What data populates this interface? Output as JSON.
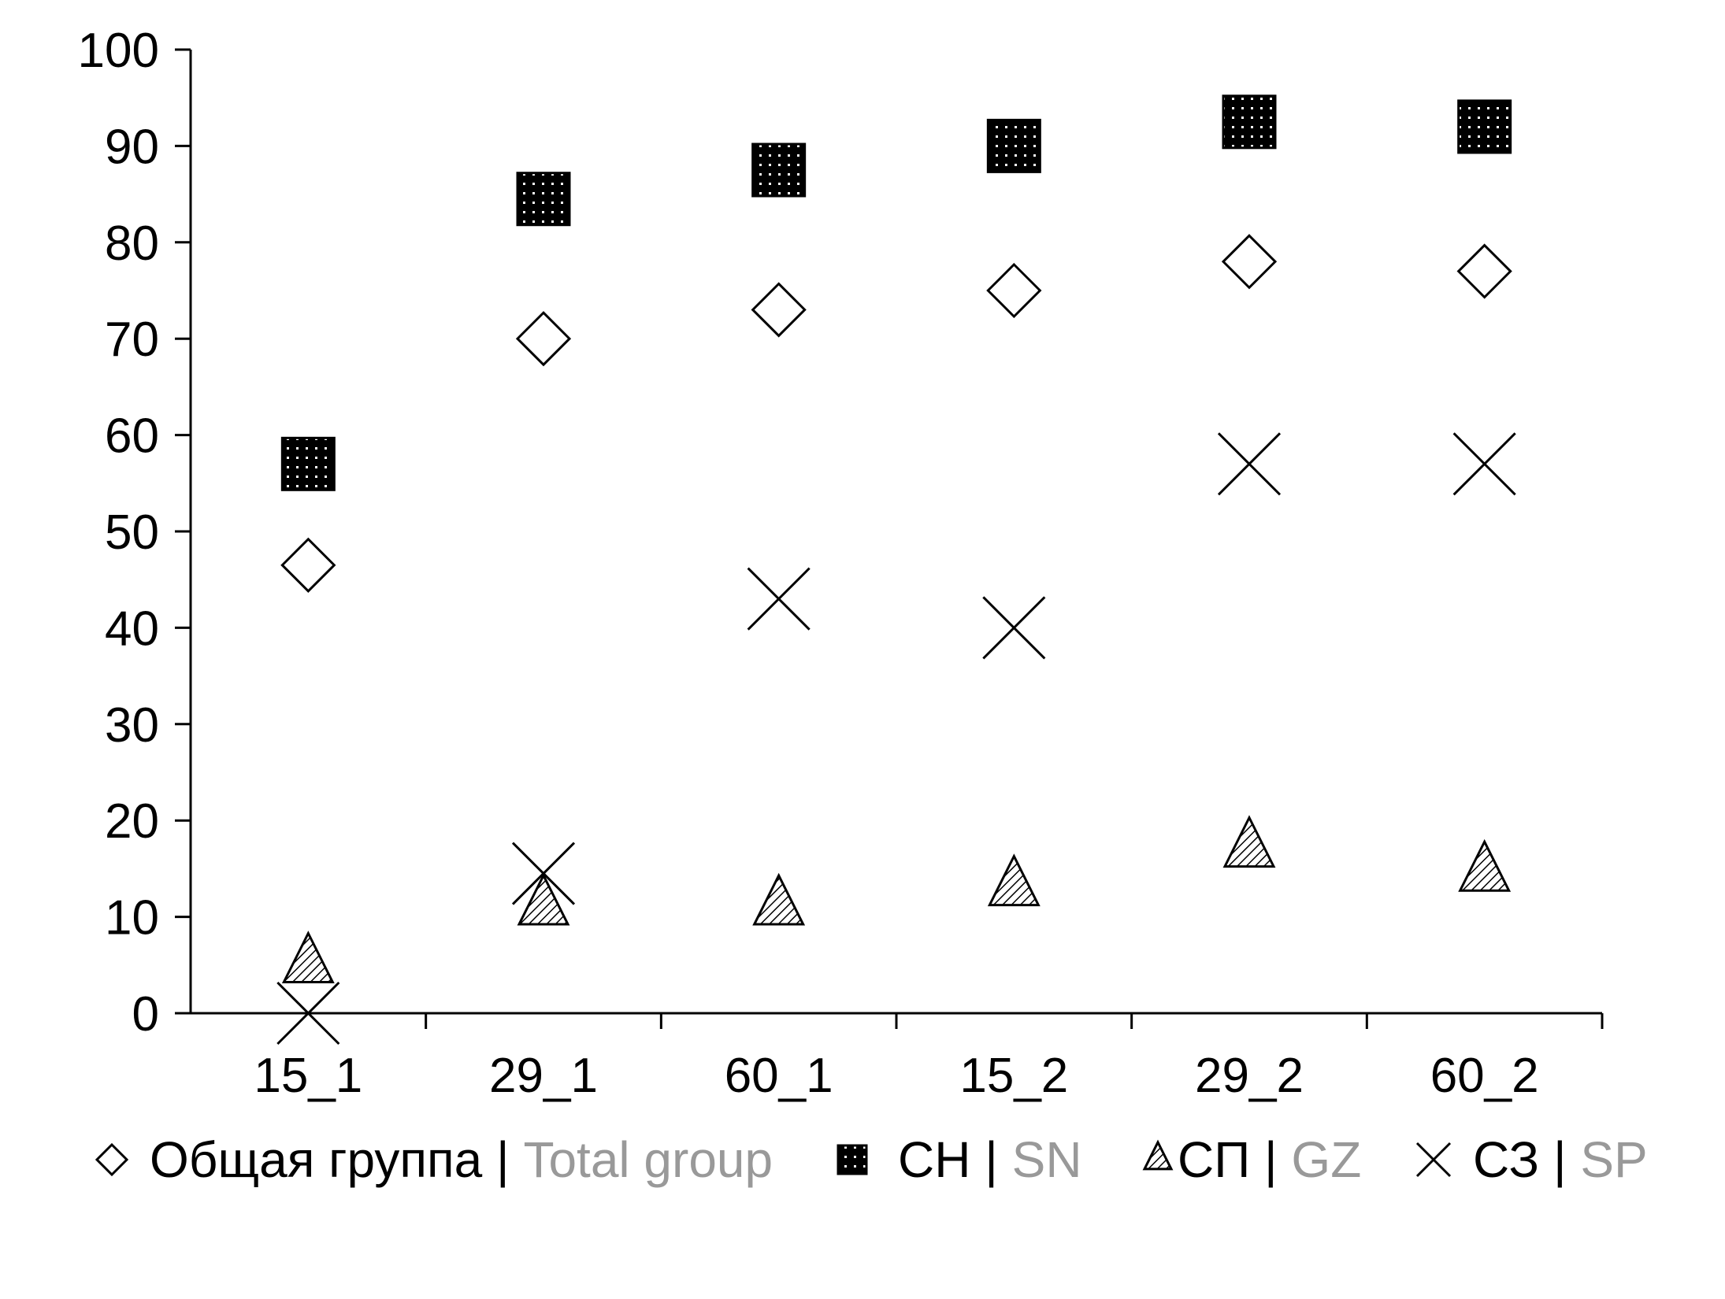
{
  "chart_data": {
    "type": "scatter",
    "categories": [
      "15_1",
      "29_1",
      "60_1",
      "15_2",
      "29_2",
      "60_2"
    ],
    "ylim": [
      0,
      100
    ],
    "yticks": [
      0,
      10,
      20,
      30,
      40,
      50,
      60,
      70,
      80,
      90,
      100
    ],
    "ytick_labels": [
      "0",
      "10",
      "20",
      "30",
      "40",
      "50",
      "60",
      "70",
      "80",
      "90",
      "100"
    ],
    "grid": false,
    "legend_position": "bottom",
    "series": [
      {
        "name_ru": "Общая группа",
        "separator": "|",
        "name_en": "Total group",
        "marker": "diamond",
        "values": [
          46.5,
          70,
          73,
          75,
          78,
          77
        ]
      },
      {
        "name_ru": "СН",
        "separator": "|",
        "name_en": "SN",
        "marker": "square",
        "values": [
          57,
          84.5,
          87.5,
          90,
          92.5,
          92
        ]
      },
      {
        "name_ru": "СП",
        "separator": "|",
        "name_en": "GZ",
        "marker": "triangle",
        "values": [
          5,
          11,
          11,
          13,
          17,
          14.5
        ]
      },
      {
        "name_ru": "СЗ",
        "separator": "|",
        "name_en": "SP",
        "marker": "cross",
        "values": [
          0,
          14.5,
          43,
          40,
          57,
          57
        ]
      }
    ]
  },
  "colors": {
    "axis": "#000000",
    "legend_en": "#999999",
    "text": "#000000"
  }
}
